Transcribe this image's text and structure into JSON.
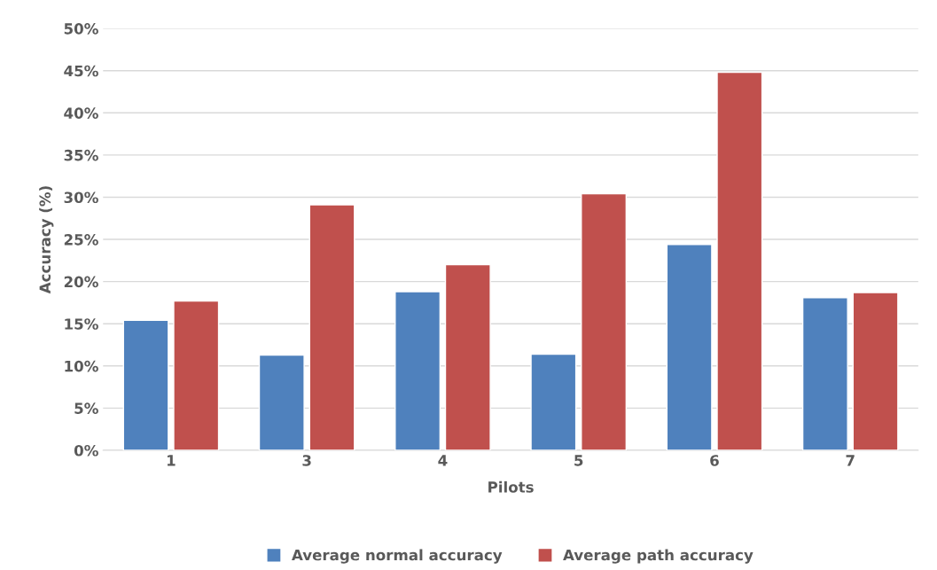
{
  "chart_data": {
    "type": "bar",
    "xlabel": "Pilots",
    "ylabel": "Accuracy (%)",
    "categories": [
      "1",
      "3",
      "4",
      "5",
      "6",
      "7"
    ],
    "series": [
      {
        "name": "Average normal accuracy",
        "color": "#4f81bd",
        "values": [
          15.4,
          11.3,
          18.8,
          11.4,
          24.4,
          18.1
        ]
      },
      {
        "name": "Average path accuracy",
        "color": "#c0504d",
        "values": [
          17.7,
          29.1,
          22.0,
          30.4,
          44.8,
          18.7
        ]
      }
    ],
    "ylim": [
      0,
      50
    ],
    "yticks": [
      {
        "value": 0,
        "label": "0%"
      },
      {
        "value": 5,
        "label": "5%"
      },
      {
        "value": 10,
        "label": "10%"
      },
      {
        "value": 15,
        "label": "15%"
      },
      {
        "value": 20,
        "label": "20%"
      },
      {
        "value": 25,
        "label": "25%"
      },
      {
        "value": 30,
        "label": "30%"
      },
      {
        "value": 35,
        "label": "35%"
      },
      {
        "value": 40,
        "label": "40%"
      },
      {
        "value": 45,
        "label": "45%"
      },
      {
        "value": 50,
        "label": "50%"
      }
    ],
    "grid": "y",
    "legend": "bottom"
  }
}
